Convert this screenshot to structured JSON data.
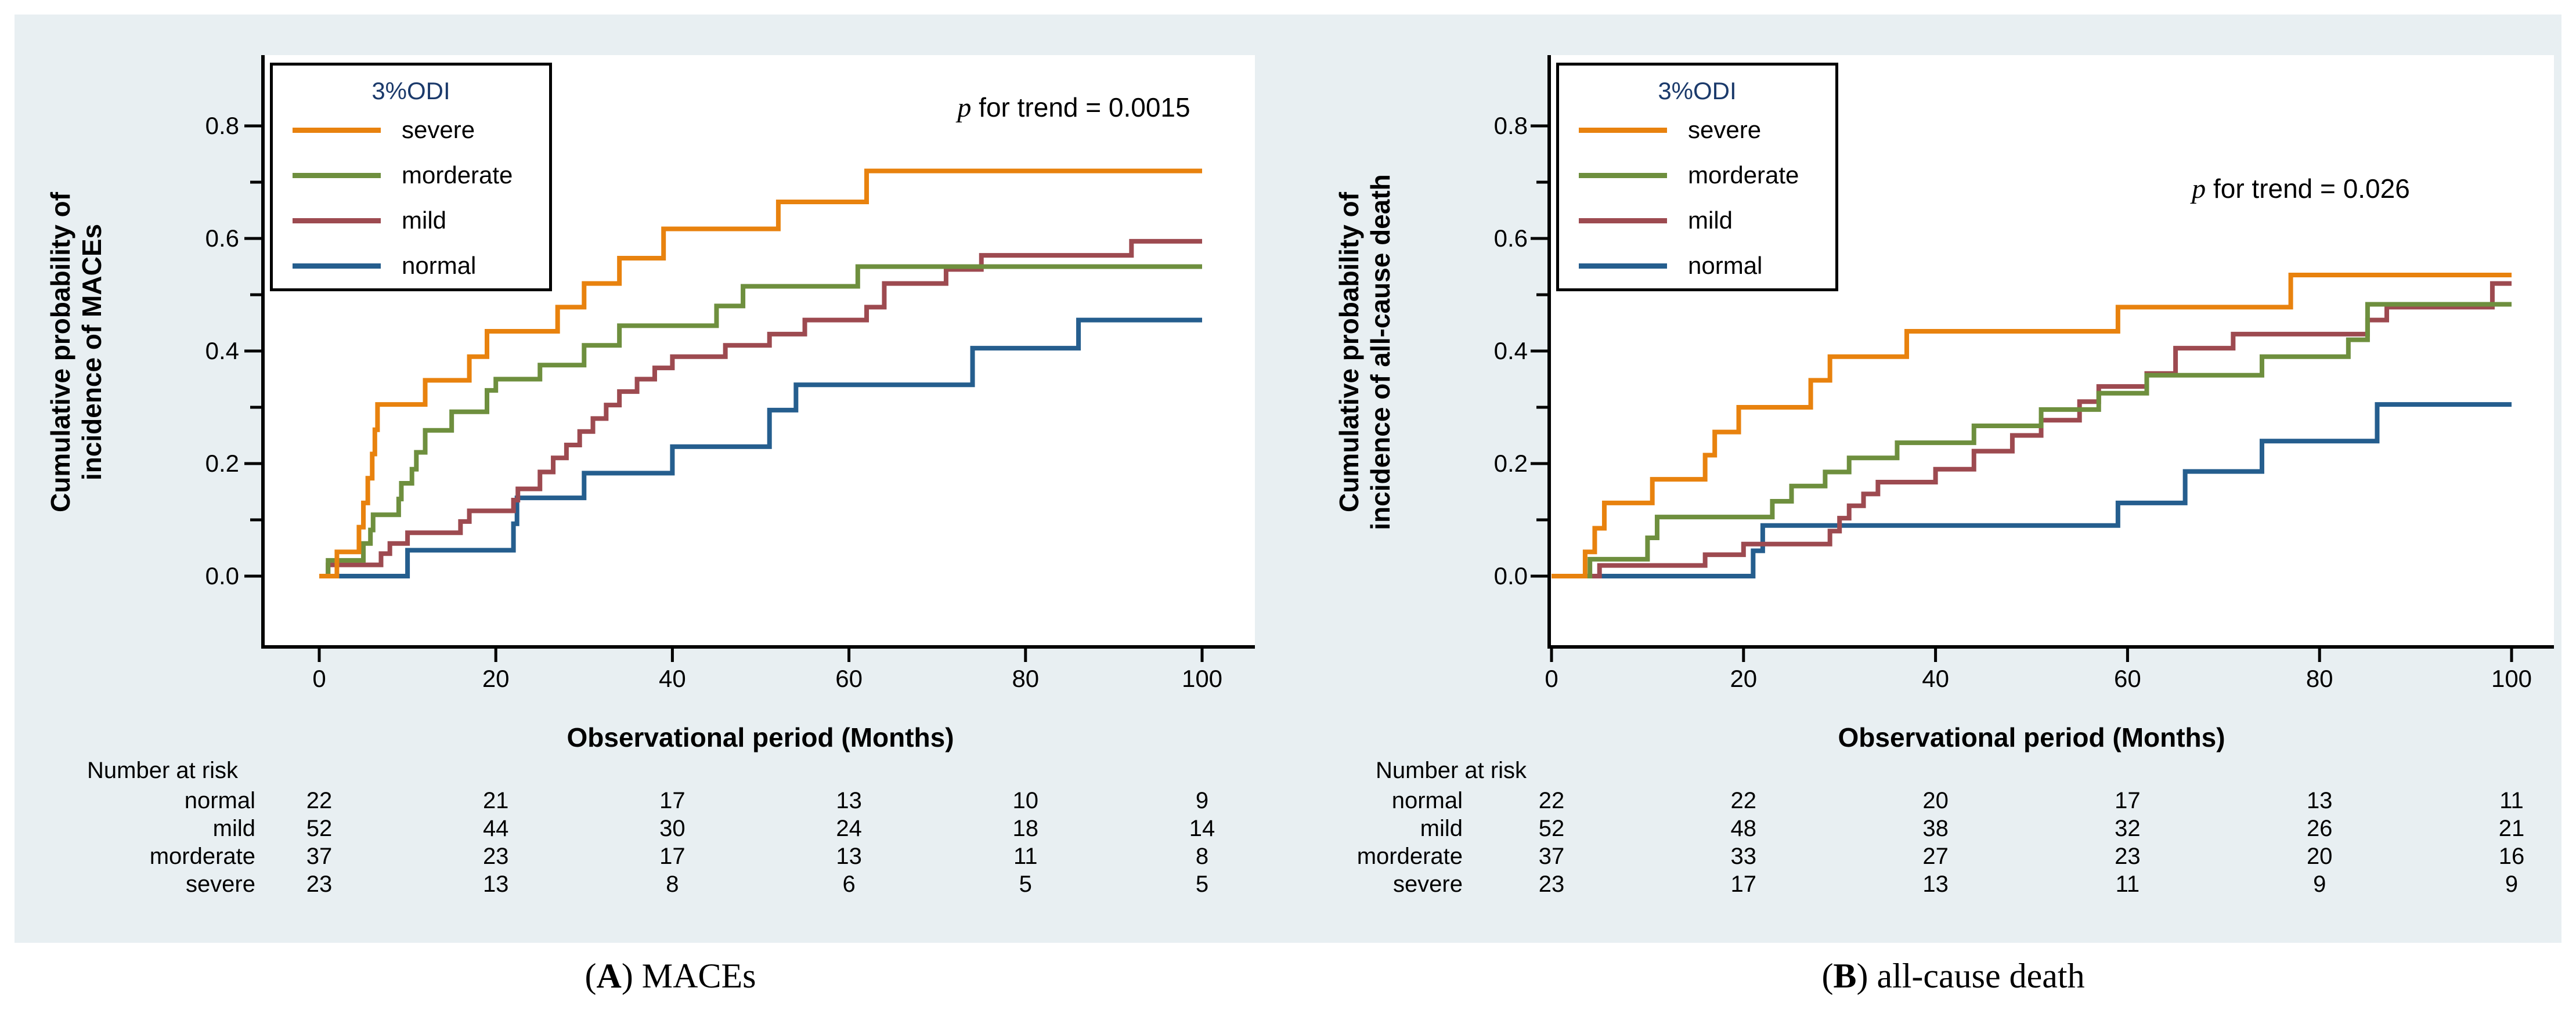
{
  "accent_colors": {
    "figure_background": "#e8eff2",
    "plot_background": "#ffffff",
    "axis_color": "#000000",
    "legend_title_color": "#1b3a6b"
  },
  "captions": [
    {
      "open": "(",
      "letter": "A",
      "close": ")",
      "text": " MACEs"
    },
    {
      "open": "(",
      "letter": "B",
      "close": ")",
      "text": " all-cause death"
    }
  ],
  "chart_data": [
    {
      "type": "line",
      "line_style": "step",
      "panel": "A",
      "title": "MACEs",
      "xlabel": "Observational period (Months)",
      "ylabel_lines": [
        "Cumulative probability of",
        "incidence of  MACEs"
      ],
      "xlim": [
        0,
        100
      ],
      "ylim": [
        0,
        0.8
      ],
      "xticks": [
        0,
        20,
        40,
        60,
        80,
        100
      ],
      "ytick_major": [
        [
          "0.0",
          0.0
        ],
        [
          "0.2",
          0.2
        ],
        [
          "0.4",
          0.4
        ],
        [
          "0.6",
          0.6
        ],
        [
          "0.8",
          0.8
        ]
      ],
      "ytick_minor": [
        0.1,
        0.3,
        0.5,
        0.7
      ],
      "grid": "off",
      "legend_position": "top-left-inside",
      "p_trend": {
        "italic": "p",
        "rest": " for trend = 0.0015"
      },
      "legend": {
        "title": "3%ODI",
        "entries": [
          {
            "label": "severe",
            "color": "#e8820e"
          },
          {
            "label": "morderate",
            "color": "#6e8f3e"
          },
          {
            "label": "mild",
            "color": "#9d4a50"
          },
          {
            "label": "normal",
            "color": "#255e8e"
          }
        ]
      },
      "series": [
        {
          "name": "normal",
          "color": "#255e8e",
          "points": [
            [
              0,
              0
            ],
            [
              10,
              0.046
            ],
            [
              22,
              0.093
            ],
            [
              22.4,
              0.139
            ],
            [
              30,
              0.183
            ],
            [
              40,
              0.23
            ],
            [
              51,
              0.295
            ],
            [
              54,
              0.34
            ],
            [
              74,
              0.405
            ],
            [
              86,
              0.455
            ]
          ]
        },
        {
          "name": "mild",
          "color": "#9d4a50",
          "points": [
            [
              0,
              0
            ],
            [
              1,
              0.02
            ],
            [
              7,
              0.04
            ],
            [
              8,
              0.058
            ],
            [
              10,
              0.077
            ],
            [
              16,
              0.097
            ],
            [
              17,
              0.116
            ],
            [
              22,
              0.135
            ],
            [
              22.5,
              0.155
            ],
            [
              25,
              0.185
            ],
            [
              26.5,
              0.21
            ],
            [
              28,
              0.233
            ],
            [
              29.5,
              0.257
            ],
            [
              31,
              0.28
            ],
            [
              32.5,
              0.304
            ],
            [
              34,
              0.328
            ],
            [
              36,
              0.35
            ],
            [
              38,
              0.37
            ],
            [
              40,
              0.39
            ],
            [
              46,
              0.41
            ],
            [
              51,
              0.43
            ],
            [
              55,
              0.455
            ],
            [
              62,
              0.478
            ],
            [
              64,
              0.52
            ],
            [
              71,
              0.545
            ],
            [
              75,
              0.57
            ],
            [
              92,
              0.595
            ]
          ]
        },
        {
          "name": "morderate",
          "color": "#6e8f3e",
          "points": [
            [
              0,
              0
            ],
            [
              1,
              0.028
            ],
            [
              5,
              0.058
            ],
            [
              5.8,
              0.082
            ],
            [
              6.1,
              0.109
            ],
            [
              9,
              0.137
            ],
            [
              9.3,
              0.165
            ],
            [
              10.5,
              0.19
            ],
            [
              11,
              0.22
            ],
            [
              12,
              0.259
            ],
            [
              15,
              0.292
            ],
            [
              19,
              0.33
            ],
            [
              20,
              0.35
            ],
            [
              25,
              0.375
            ],
            [
              30,
              0.41
            ],
            [
              34,
              0.445
            ],
            [
              45,
              0.48
            ],
            [
              48,
              0.515
            ],
            [
              61,
              0.55
            ]
          ]
        },
        {
          "name": "severe",
          "color": "#e8820e",
          "points": [
            [
              0,
              0
            ],
            [
              2,
              0.043
            ],
            [
              4.5,
              0.087
            ],
            [
              5,
              0.13
            ],
            [
              5.5,
              0.174
            ],
            [
              6,
              0.217
            ],
            [
              6.3,
              0.26
            ],
            [
              6.6,
              0.305
            ],
            [
              12,
              0.348
            ],
            [
              17,
              0.39
            ],
            [
              19,
              0.435
            ],
            [
              27,
              0.478
            ],
            [
              30,
              0.52
            ],
            [
              34,
              0.565
            ],
            [
              39,
              0.617
            ],
            [
              52,
              0.665
            ],
            [
              62,
              0.72
            ]
          ]
        }
      ],
      "risk_table": {
        "header": "Number at risk",
        "time_points": [
          0,
          20,
          40,
          60,
          80,
          100
        ],
        "rows": [
          {
            "label": "normal",
            "values": [
              22,
              21,
              17,
              13,
              10,
              9
            ]
          },
          {
            "label": "mild",
            "values": [
              52,
              44,
              30,
              24,
              18,
              14
            ]
          },
          {
            "label": "morderate",
            "values": [
              37,
              23,
              17,
              13,
              11,
              8
            ]
          },
          {
            "label": "severe",
            "values": [
              23,
              13,
              8,
              6,
              5,
              5
            ]
          }
        ]
      }
    },
    {
      "type": "line",
      "line_style": "step",
      "panel": "B",
      "title": "all-cause death",
      "xlabel": "Observational period (Months)",
      "ylabel_lines": [
        "Cumulative probability of",
        "incidence of all-cause death"
      ],
      "xlim": [
        0,
        100
      ],
      "ylim": [
        0,
        0.8
      ],
      "xticks": [
        0,
        20,
        40,
        60,
        80,
        100
      ],
      "ytick_major": [
        [
          "0.0",
          0.0
        ],
        [
          "0.2",
          0.2
        ],
        [
          "0.4",
          0.4
        ],
        [
          "0.6",
          0.6
        ],
        [
          "0.8",
          0.8
        ]
      ],
      "ytick_minor": [
        0.1,
        0.3,
        0.5,
        0.7
      ],
      "grid": "off",
      "legend_position": "top-left-inside",
      "p_trend": {
        "italic": "p",
        "rest": " for trend = 0.026"
      },
      "legend": {
        "title": "3%ODI",
        "entries": [
          {
            "label": "severe",
            "color": "#e8820e"
          },
          {
            "label": "morderate",
            "color": "#6e8f3e"
          },
          {
            "label": "mild",
            "color": "#9d4a50"
          },
          {
            "label": "normal",
            "color": "#255e8e"
          }
        ]
      },
      "series": [
        {
          "name": "normal",
          "color": "#255e8e",
          "points": [
            [
              0,
              0
            ],
            [
              21,
              0.045
            ],
            [
              22,
              0.09
            ],
            [
              59,
              0.13
            ],
            [
              66,
              0.186
            ],
            [
              74,
              0.24
            ],
            [
              86,
              0.305
            ]
          ]
        },
        {
          "name": "mild",
          "color": "#9d4a50",
          "points": [
            [
              0,
              0
            ],
            [
              5,
              0.019
            ],
            [
              16,
              0.038
            ],
            [
              20,
              0.057
            ],
            [
              29,
              0.08
            ],
            [
              30,
              0.103
            ],
            [
              31,
              0.125
            ],
            [
              32.5,
              0.146
            ],
            [
              34,
              0.167
            ],
            [
              40,
              0.19
            ],
            [
              44,
              0.222
            ],
            [
              48,
              0.25
            ],
            [
              51,
              0.277
            ],
            [
              55,
              0.31
            ],
            [
              57,
              0.337
            ],
            [
              62,
              0.36
            ],
            [
              65,
              0.405
            ],
            [
              71,
              0.43
            ],
            [
              85,
              0.455
            ],
            [
              87,
              0.478
            ],
            [
              98,
              0.52
            ]
          ]
        },
        {
          "name": "morderate",
          "color": "#6e8f3e",
          "points": [
            [
              0,
              0
            ],
            [
              4,
              0.03
            ],
            [
              10,
              0.068
            ],
            [
              11,
              0.105
            ],
            [
              23,
              0.133
            ],
            [
              25,
              0.16
            ],
            [
              28.5,
              0.185
            ],
            [
              31,
              0.21
            ],
            [
              36,
              0.237
            ],
            [
              44,
              0.267
            ],
            [
              51,
              0.296
            ],
            [
              57,
              0.325
            ],
            [
              62,
              0.357
            ],
            [
              74,
              0.39
            ],
            [
              83,
              0.42
            ],
            [
              85,
              0.483
            ]
          ]
        },
        {
          "name": "severe",
          "color": "#e8820e",
          "points": [
            [
              0,
              0
            ],
            [
              3.5,
              0.043
            ],
            [
              4.5,
              0.085
            ],
            [
              5.5,
              0.13
            ],
            [
              10.5,
              0.172
            ],
            [
              16,
              0.215
            ],
            [
              17,
              0.256
            ],
            [
              19.5,
              0.3
            ],
            [
              27,
              0.348
            ],
            [
              29,
              0.39
            ],
            [
              37,
              0.435
            ],
            [
              59,
              0.478
            ],
            [
              77,
              0.535
            ]
          ]
        }
      ],
      "risk_table": {
        "header": "Number at risk",
        "time_points": [
          0,
          20,
          40,
          60,
          80,
          100
        ],
        "rows": [
          {
            "label": "normal",
            "values": [
              22,
              22,
              20,
              17,
              13,
              11
            ]
          },
          {
            "label": "mild",
            "values": [
              52,
              48,
              38,
              32,
              26,
              21
            ]
          },
          {
            "label": "morderate",
            "values": [
              37,
              33,
              27,
              23,
              20,
              16
            ]
          },
          {
            "label": "severe",
            "values": [
              23,
              17,
              13,
              11,
              9,
              9
            ]
          }
        ]
      }
    }
  ]
}
